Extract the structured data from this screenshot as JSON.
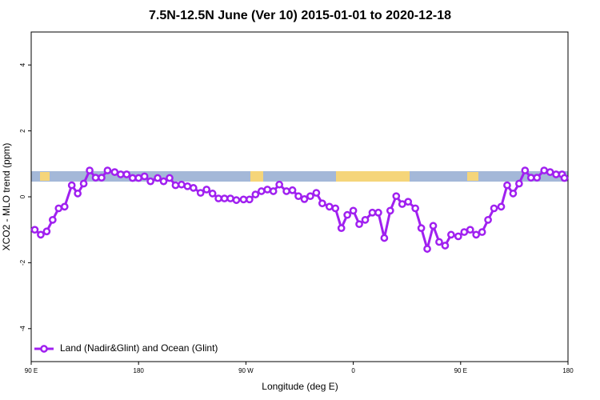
{
  "chart_data": {
    "type": "line",
    "title": "7.5N-12.5N June (Ver 10)   2015-01-01 to 2020-12-18",
    "x_label": "Longitude (deg E)",
    "y_label": "XCO2 - MLO trend (ppm)",
    "xlim": [
      90,
      540
    ],
    "ylim": [
      -5,
      5
    ],
    "xticks": [
      {
        "value": 90,
        "label": "90 E"
      },
      180,
      {
        "value": 270,
        "label": "90 W"
      },
      {
        "value": 360,
        "label": "0"
      },
      {
        "value": 450,
        "label": "90 E"
      },
      {
        "value": 540,
        "label": "180"
      }
    ],
    "yticks": [
      -4,
      -2,
      0,
      2,
      4
    ],
    "legend": "bottom-left",
    "series": [
      {
        "name": "Land (Nadir&Glint) and Ocean (Glint)",
        "color": "#a020f0",
        "x": [
          93,
          98,
          103,
          108,
          113,
          118,
          124,
          129,
          134,
          139,
          144,
          149,
          154,
          160,
          165,
          170,
          175,
          180,
          185,
          190,
          196,
          201,
          206,
          211,
          216,
          221,
          226,
          232,
          237,
          242,
          247,
          252,
          257,
          262,
          268,
          273,
          278,
          283,
          288,
          293,
          298,
          304,
          309,
          314,
          319,
          324,
          329,
          334,
          340,
          345,
          350,
          355,
          360,
          365,
          370,
          376,
          381,
          386,
          391,
          396,
          401,
          406,
          412,
          417,
          422,
          427,
          432,
          437,
          442,
          448,
          453,
          458,
          463,
          468,
          473,
          478,
          484,
          489,
          494,
          499,
          504,
          509,
          514,
          520,
          525,
          530,
          535,
          537
        ],
        "values": [
          -1.0,
          -1.15,
          -1.05,
          -0.7,
          -0.35,
          -0.3,
          0.35,
          0.1,
          0.4,
          0.8,
          0.58,
          0.58,
          0.8,
          0.75,
          0.68,
          0.68,
          0.57,
          0.57,
          0.62,
          0.47,
          0.57,
          0.47,
          0.57,
          0.35,
          0.37,
          0.32,
          0.27,
          0.12,
          0.22,
          0.1,
          -0.05,
          -0.05,
          -0.05,
          -0.1,
          -0.08,
          -0.08,
          0.07,
          0.17,
          0.22,
          0.17,
          0.37,
          0.17,
          0.2,
          0.02,
          -0.07,
          0.02,
          0.12,
          -0.2,
          -0.3,
          -0.35,
          -0.95,
          -0.55,
          -0.42,
          -0.83,
          -0.7,
          -0.48,
          -0.48,
          -1.25,
          -0.42,
          0.02,
          -0.22,
          -0.15,
          -0.35,
          -0.95,
          -1.58,
          -0.88,
          -1.37,
          -1.48,
          -1.15,
          -1.2,
          -1.07,
          -1.0,
          -1.15,
          -1.07,
          -0.7,
          -0.35,
          -0.3,
          0.35,
          0.1,
          0.4,
          0.8,
          0.58,
          0.58,
          0.8,
          0.75,
          0.68,
          0.68,
          0.57
        ]
      }
    ]
  }
}
